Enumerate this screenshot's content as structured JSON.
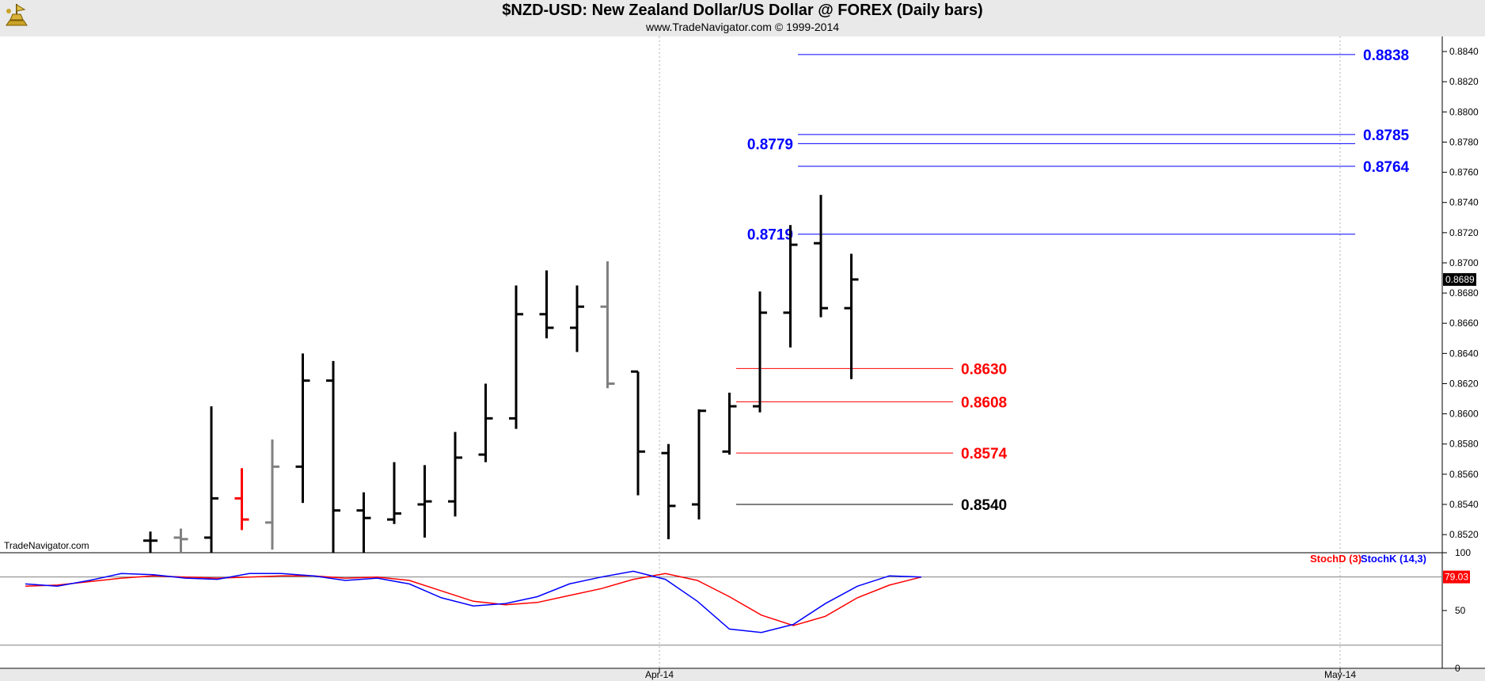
{
  "header": {
    "title": "$NZD-USD:  New Zealand Dollar/US Dollar @ FOREX  (Daily bars)",
    "subtitle": "www.TradeNavigator.com © 1999-2014",
    "watermark": "TradeNavigator.com"
  },
  "chart_data": {
    "type": "ohlc",
    "price_axis": {
      "ylim": [
        0.8508,
        0.885
      ],
      "ticks": [
        "0.8520",
        "0.8540",
        "0.8560",
        "0.8580",
        "0.8600",
        "0.8620",
        "0.8640",
        "0.8660",
        "0.8680",
        "0.8700",
        "0.8720",
        "0.8740",
        "0.8760",
        "0.8780",
        "0.8800",
        "0.8820",
        "0.8840"
      ],
      "last_price_label": "0.8689"
    },
    "x_labels": [
      "Apr-14",
      "May-14"
    ],
    "bars": [
      {
        "o": 0.8516,
        "h": 0.8522,
        "l": 0.8506,
        "c": 0.8516,
        "color": "#000000"
      },
      {
        "o": 0.8518,
        "h": 0.8524,
        "l": 0.8506,
        "c": 0.8517,
        "color": "#808080"
      },
      {
        "o": 0.8518,
        "h": 0.8605,
        "l": 0.8506,
        "c": 0.8544,
        "color": "#000000"
      },
      {
        "o": 0.8544,
        "h": 0.8564,
        "l": 0.8523,
        "c": 0.853,
        "color": "#ff0000"
      },
      {
        "o": 0.8528,
        "h": 0.8583,
        "l": 0.851,
        "c": 0.8565,
        "color": "#808080"
      },
      {
        "o": 0.8565,
        "h": 0.864,
        "l": 0.8541,
        "c": 0.8622,
        "color": "#000000"
      },
      {
        "o": 0.8622,
        "h": 0.8635,
        "l": 0.85,
        "c": 0.8536,
        "color": "#000000"
      },
      {
        "o": 0.8536,
        "h": 0.8548,
        "l": 0.8505,
        "c": 0.8531,
        "color": "#000000"
      },
      {
        "o": 0.853,
        "h": 0.8568,
        "l": 0.8527,
        "c": 0.8534,
        "color": "#000000"
      },
      {
        "o": 0.854,
        "h": 0.8566,
        "l": 0.8518,
        "c": 0.8542,
        "color": "#000000"
      },
      {
        "o": 0.8542,
        "h": 0.8588,
        "l": 0.8532,
        "c": 0.8571,
        "color": "#000000"
      },
      {
        "o": 0.8573,
        "h": 0.862,
        "l": 0.8568,
        "c": 0.8597,
        "color": "#000000"
      },
      {
        "o": 0.8597,
        "h": 0.8685,
        "l": 0.859,
        "c": 0.8666,
        "color": "#000000"
      },
      {
        "o": 0.8666,
        "h": 0.8695,
        "l": 0.865,
        "c": 0.8657,
        "color": "#000000"
      },
      {
        "o": 0.8657,
        "h": 0.8685,
        "l": 0.8641,
        "c": 0.8671,
        "color": "#000000"
      },
      {
        "o": 0.8671,
        "h": 0.8701,
        "l": 0.8617,
        "c": 0.862,
        "color": "#808080"
      },
      {
        "o": 0.8628,
        "h": 0.8628,
        "l": 0.8546,
        "c": 0.8575,
        "color": "#000000"
      },
      {
        "o": 0.8574,
        "h": 0.858,
        "l": 0.8517,
        "c": 0.8539,
        "color": "#000000"
      },
      {
        "o": 0.854,
        "h": 0.8603,
        "l": 0.853,
        "c": 0.8602,
        "color": "#000000"
      },
      {
        "o": 0.8575,
        "h": 0.8614,
        "l": 0.8573,
        "c": 0.8605,
        "color": "#000000"
      },
      {
        "o": 0.8605,
        "h": 0.8681,
        "l": 0.8601,
        "c": 0.8667,
        "color": "#000000"
      },
      {
        "o": 0.8667,
        "h": 0.8725,
        "l": 0.8644,
        "c": 0.8712,
        "color": "#000000"
      },
      {
        "o": 0.8713,
        "h": 0.8745,
        "l": 0.8664,
        "c": 0.867,
        "color": "#000000"
      },
      {
        "o": 0.867,
        "h": 0.8706,
        "l": 0.8623,
        "c": 0.8689,
        "color": "#000000"
      }
    ],
    "levels": [
      {
        "value": 0.8838,
        "label": "0.8838",
        "color": "#0000ff",
        "label_side": "right"
      },
      {
        "value": 0.8785,
        "label": "0.8785",
        "color": "#0000ff",
        "label_side": "right"
      },
      {
        "value": 0.8779,
        "label": "0.8779",
        "color": "#0000ff",
        "label_side": "left"
      },
      {
        "value": 0.8764,
        "label": "0.8764",
        "color": "#0000ff",
        "label_side": "right"
      },
      {
        "value": 0.8719,
        "label": "0.8719",
        "color": "#0000ff",
        "label_side": "left"
      },
      {
        "value": 0.863,
        "label": "0.8630",
        "color": "#ff0000",
        "label_side": "end"
      },
      {
        "value": 0.8608,
        "label": "0.8608",
        "color": "#ff0000",
        "label_side": "end"
      },
      {
        "value": 0.8574,
        "label": "0.8574",
        "color": "#ff0000",
        "label_side": "end"
      },
      {
        "value": 0.854,
        "label": "0.8540",
        "color": "#000000",
        "label_side": "end"
      }
    ],
    "stochastic": {
      "legend": [
        "StochD (3)",
        "StochK (14,3)"
      ],
      "colors": [
        "#ff0000",
        "#0000ff"
      ],
      "ylim": [
        0,
        100
      ],
      "ticks": [
        "0",
        "50",
        "100"
      ],
      "reference_lines": [
        79,
        20
      ],
      "last_value_label": "79.03",
      "stoch_d": [
        71,
        72,
        75,
        78,
        80,
        79,
        78,
        79,
        80,
        80,
        78,
        79,
        76,
        67,
        58,
        55,
        57,
        63,
        69,
        77,
        82,
        76,
        62,
        46,
        37,
        45,
        61,
        72,
        79
      ],
      "stoch_k": [
        73,
        71,
        76,
        82,
        81,
        78,
        77,
        82,
        82,
        80,
        76,
        78,
        73,
        61,
        54,
        56,
        62,
        73,
        79,
        84,
        77,
        58,
        34,
        31,
        38,
        56,
        71,
        80,
        79
      ]
    }
  }
}
